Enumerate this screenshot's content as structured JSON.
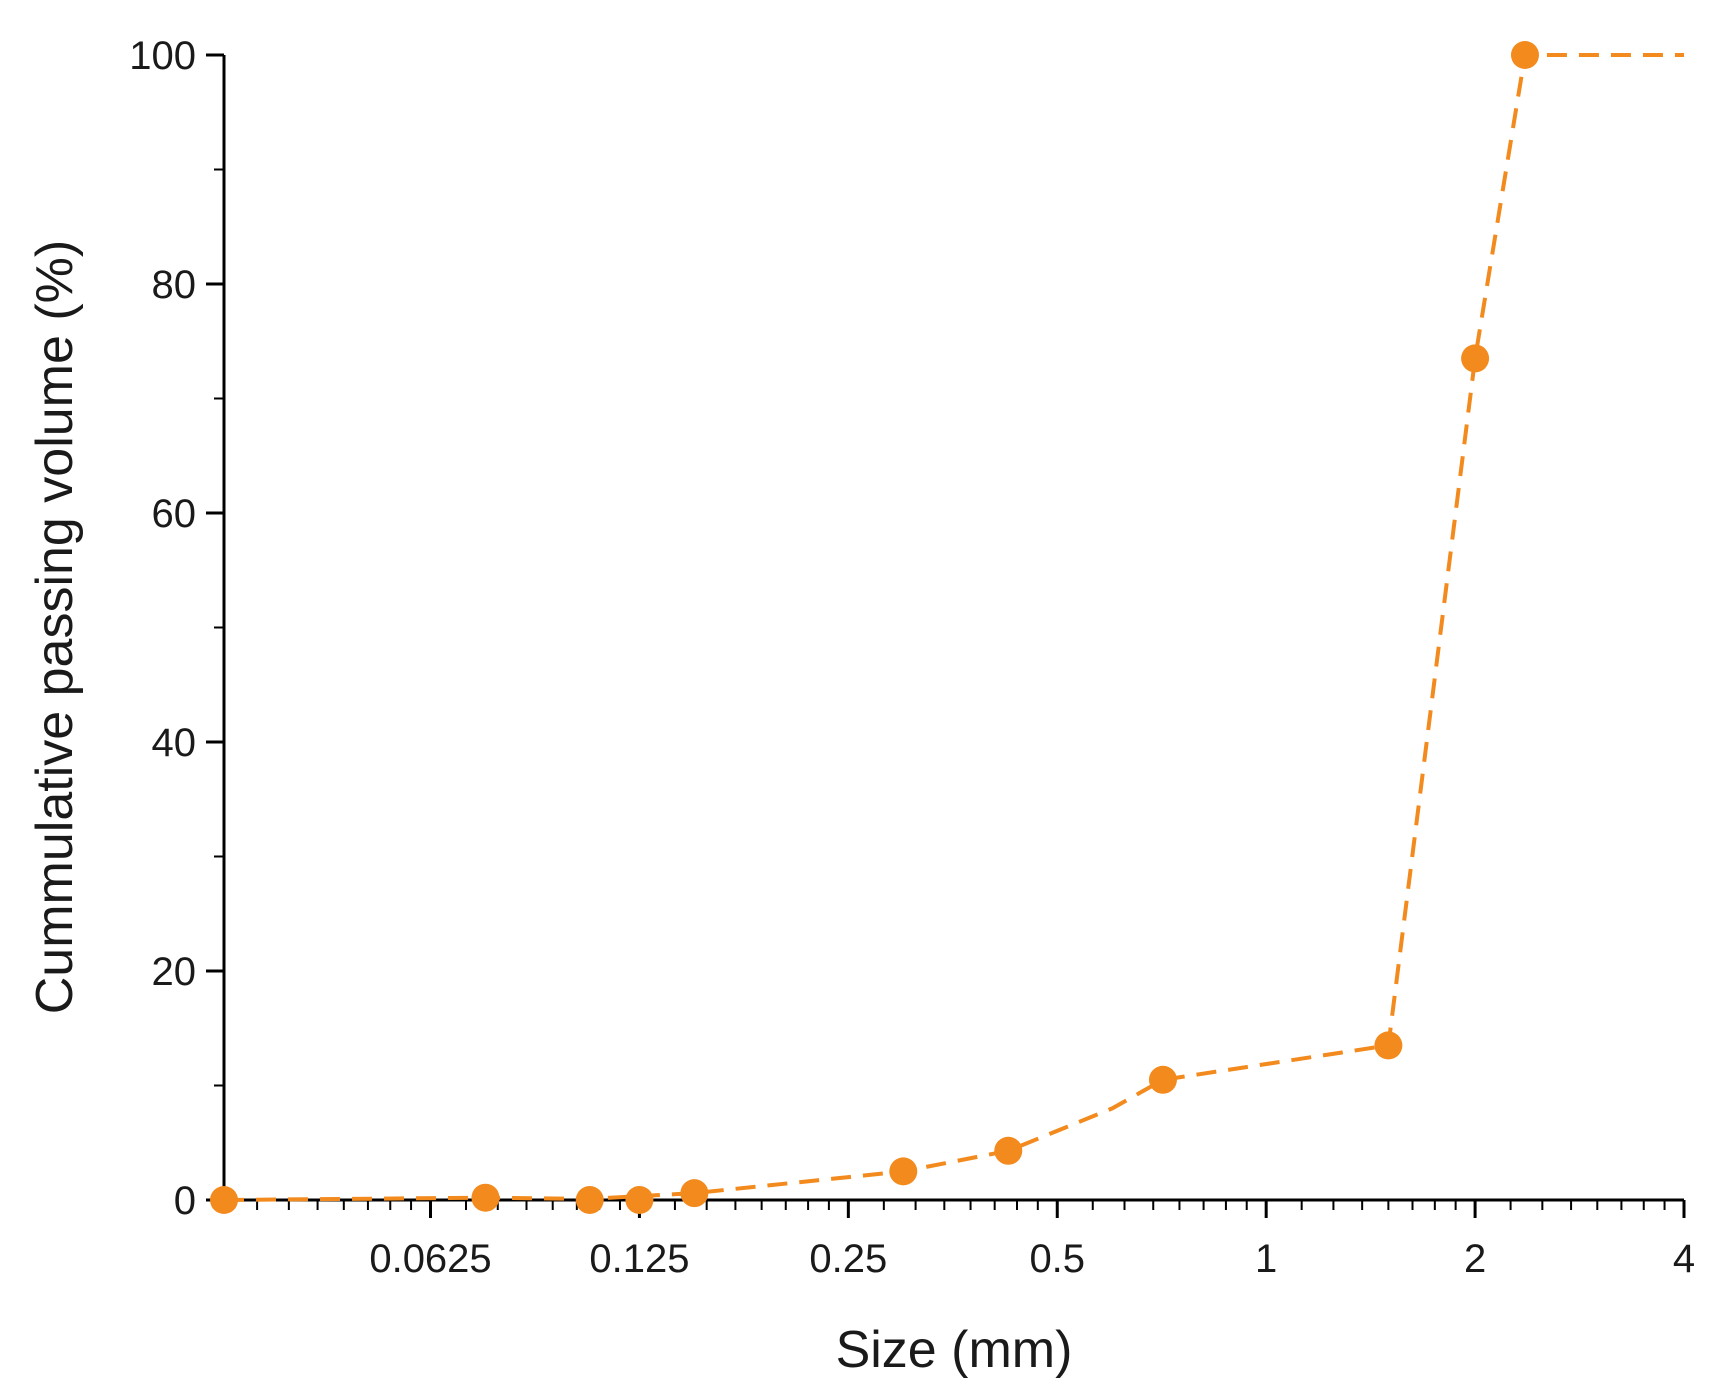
{
  "chart_data": {
    "type": "line",
    "title": "",
    "xlabel": "Size (mm)",
    "ylabel": "Cummulative passing volume (%)",
    "x_scale": "log2",
    "xlim": [
      0.0315,
      4
    ],
    "ylim": [
      0,
      100
    ],
    "x_ticks": [
      {
        "value": 0.0625,
        "label": "0.0625"
      },
      {
        "value": 0.125,
        "label": "0.125"
      },
      {
        "value": 0.25,
        "label": "0.25"
      },
      {
        "value": 0.5,
        "label": "0.5"
      },
      {
        "value": 1,
        "label": "1"
      },
      {
        "value": 2,
        "label": "2"
      },
      {
        "value": 4,
        "label": "4"
      }
    ],
    "y_ticks": [
      {
        "value": 0,
        "label": "0"
      },
      {
        "value": 20,
        "label": "20"
      },
      {
        "value": 40,
        "label": "40"
      },
      {
        "value": 60,
        "label": "60"
      },
      {
        "value": 80,
        "label": "80"
      },
      {
        "value": 100,
        "label": "100"
      }
    ],
    "grid": false,
    "legend": "none",
    "series": [
      {
        "color": "#f28a1d",
        "line_style": "dashed",
        "line_points": [
          [
            0.0315,
            0
          ],
          [
            0.075,
            0.2
          ],
          [
            0.106,
            0.1
          ],
          [
            0.15,
            0.6
          ],
          [
            0.3,
            2.5
          ],
          [
            0.425,
            4.3
          ],
          [
            0.6,
            8.0
          ],
          [
            0.71,
            10.5
          ],
          [
            1.5,
            13.5
          ],
          [
            2.0,
            73.5
          ],
          [
            2.36,
            100
          ],
          [
            4,
            100
          ]
        ],
        "marker_points": [
          [
            0.0315,
            0
          ],
          [
            0.075,
            0.2
          ],
          [
            0.106,
            0
          ],
          [
            0.125,
            0
          ],
          [
            0.15,
            0.6
          ],
          [
            0.3,
            2.5
          ],
          [
            0.425,
            4.3
          ],
          [
            0.71,
            10.5
          ],
          [
            1.5,
            13.5
          ],
          [
            2.0,
            73.5
          ],
          [
            2.36,
            100
          ]
        ]
      }
    ]
  }
}
